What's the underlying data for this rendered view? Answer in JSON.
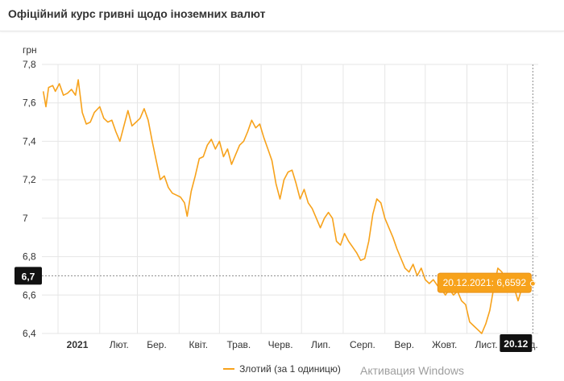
{
  "title": "Офіційний курс гривні щодо іноземних валют",
  "watermark": "Активация Windows",
  "chart_data": {
    "type": "line",
    "ylabel": "грн",
    "ylim": [
      6.4,
      7.8
    ],
    "yticks": [
      6.4,
      6.6,
      6.8,
      7,
      7.2,
      7.4,
      7.6,
      7.8
    ],
    "ytick_labels": [
      "6,4",
      "6,6",
      "6,8",
      "7",
      "7,2",
      "7,4",
      "7,6",
      "7,8"
    ],
    "xticks": [
      {
        "date": "2021-01-01",
        "label": "2021",
        "bold": true
      },
      {
        "date": "2021-02-01",
        "label": "Лют.",
        "bold": false
      },
      {
        "date": "2021-03-01",
        "label": "Бер.",
        "bold": false
      },
      {
        "date": "2021-04-01",
        "label": "Квіт.",
        "bold": false
      },
      {
        "date": "2021-05-01",
        "label": "Трав.",
        "bold": false
      },
      {
        "date": "2021-06-01",
        "label": "Черв.",
        "bold": false
      },
      {
        "date": "2021-07-01",
        "label": "Лип.",
        "bold": false
      },
      {
        "date": "2021-08-01",
        "label": "Серп.",
        "bold": false
      },
      {
        "date": "2021-09-01",
        "label": "Вер.",
        "bold": false
      },
      {
        "date": "2021-10-01",
        "label": "Жовт.",
        "bold": false
      },
      {
        "date": "2021-11-01",
        "label": "Лист.",
        "bold": false
      },
      {
        "date": "2021-12-01",
        "label": "Груд.",
        "bold": false
      }
    ],
    "xrange": [
      "2020-12-20",
      "2021-12-24"
    ],
    "grid": true,
    "legend_position": "bottom",
    "series": [
      {
        "name": "Злотий (за 1 одиницю)",
        "color": "#f7a21b",
        "points": [
          [
            "2020-12-21",
            7.66
          ],
          [
            "2020-12-23",
            7.58
          ],
          [
            "2020-12-25",
            7.68
          ],
          [
            "2020-12-28",
            7.69
          ],
          [
            "2020-12-30",
            7.66
          ],
          [
            "2021-01-02",
            7.7
          ],
          [
            "2021-01-05",
            7.64
          ],
          [
            "2021-01-08",
            7.65
          ],
          [
            "2021-01-11",
            7.67
          ],
          [
            "2021-01-14",
            7.64
          ],
          [
            "2021-01-16",
            7.72
          ],
          [
            "2021-01-19",
            7.55
          ],
          [
            "2021-01-22",
            7.49
          ],
          [
            "2021-01-25",
            7.5
          ],
          [
            "2021-01-28",
            7.55
          ],
          [
            "2021-02-01",
            7.58
          ],
          [
            "2021-02-04",
            7.52
          ],
          [
            "2021-02-07",
            7.5
          ],
          [
            "2021-02-10",
            7.51
          ],
          [
            "2021-02-13",
            7.45
          ],
          [
            "2021-02-16",
            7.4
          ],
          [
            "2021-02-19",
            7.48
          ],
          [
            "2021-02-22",
            7.56
          ],
          [
            "2021-02-25",
            7.48
          ],
          [
            "2021-02-28",
            7.5
          ],
          [
            "2021-03-03",
            7.52
          ],
          [
            "2021-03-06",
            7.57
          ],
          [
            "2021-03-09",
            7.51
          ],
          [
            "2021-03-12",
            7.4
          ],
          [
            "2021-03-15",
            7.3
          ],
          [
            "2021-03-18",
            7.2
          ],
          [
            "2021-03-21",
            7.22
          ],
          [
            "2021-03-24",
            7.16
          ],
          [
            "2021-03-27",
            7.13
          ],
          [
            "2021-03-30",
            7.12
          ],
          [
            "2021-04-02",
            7.11
          ],
          [
            "2021-04-05",
            7.08
          ],
          [
            "2021-04-07",
            7.01
          ],
          [
            "2021-04-10",
            7.14
          ],
          [
            "2021-04-13",
            7.22
          ],
          [
            "2021-04-16",
            7.31
          ],
          [
            "2021-04-19",
            7.32
          ],
          [
            "2021-04-22",
            7.38
          ],
          [
            "2021-04-25",
            7.41
          ],
          [
            "2021-04-28",
            7.36
          ],
          [
            "2021-05-01",
            7.4
          ],
          [
            "2021-05-04",
            7.32
          ],
          [
            "2021-05-07",
            7.36
          ],
          [
            "2021-05-10",
            7.28
          ],
          [
            "2021-05-13",
            7.33
          ],
          [
            "2021-05-16",
            7.38
          ],
          [
            "2021-05-19",
            7.4
          ],
          [
            "2021-05-22",
            7.45
          ],
          [
            "2021-05-25",
            7.51
          ],
          [
            "2021-05-28",
            7.47
          ],
          [
            "2021-05-31",
            7.49
          ],
          [
            "2021-06-03",
            7.42
          ],
          [
            "2021-06-06",
            7.36
          ],
          [
            "2021-06-09",
            7.3
          ],
          [
            "2021-06-12",
            7.18
          ],
          [
            "2021-06-15",
            7.1
          ],
          [
            "2021-06-18",
            7.2
          ],
          [
            "2021-06-21",
            7.24
          ],
          [
            "2021-06-24",
            7.25
          ],
          [
            "2021-06-27",
            7.18
          ],
          [
            "2021-06-30",
            7.1
          ],
          [
            "2021-07-03",
            7.15
          ],
          [
            "2021-07-06",
            7.08
          ],
          [
            "2021-07-09",
            7.05
          ],
          [
            "2021-07-12",
            7.0
          ],
          [
            "2021-07-15",
            6.95
          ],
          [
            "2021-07-18",
            7.0
          ],
          [
            "2021-07-21",
            7.03
          ],
          [
            "2021-07-24",
            7.0
          ],
          [
            "2021-07-27",
            6.88
          ],
          [
            "2021-07-30",
            6.86
          ],
          [
            "2021-08-02",
            6.92
          ],
          [
            "2021-08-05",
            6.88
          ],
          [
            "2021-08-08",
            6.85
          ],
          [
            "2021-08-11",
            6.82
          ],
          [
            "2021-08-14",
            6.78
          ],
          [
            "2021-08-17",
            6.79
          ],
          [
            "2021-08-20",
            6.88
          ],
          [
            "2021-08-23",
            7.02
          ],
          [
            "2021-08-26",
            7.1
          ],
          [
            "2021-08-29",
            7.08
          ],
          [
            "2021-09-01",
            7.0
          ],
          [
            "2021-09-04",
            6.95
          ],
          [
            "2021-09-07",
            6.9
          ],
          [
            "2021-09-10",
            6.84
          ],
          [
            "2021-09-13",
            6.79
          ],
          [
            "2021-09-16",
            6.74
          ],
          [
            "2021-09-19",
            6.72
          ],
          [
            "2021-09-22",
            6.76
          ],
          [
            "2021-09-25",
            6.7
          ],
          [
            "2021-09-28",
            6.74
          ],
          [
            "2021-10-01",
            6.68
          ],
          [
            "2021-10-04",
            6.66
          ],
          [
            "2021-10-07",
            6.68
          ],
          [
            "2021-10-10",
            6.65
          ],
          [
            "2021-10-13",
            6.63
          ],
          [
            "2021-10-16",
            6.6
          ],
          [
            "2021-10-19",
            6.63
          ],
          [
            "2021-10-22",
            6.6
          ],
          [
            "2021-10-25",
            6.62
          ],
          [
            "2021-10-28",
            6.57
          ],
          [
            "2021-10-31",
            6.55
          ],
          [
            "2021-11-03",
            6.46
          ],
          [
            "2021-11-06",
            6.44
          ],
          [
            "2021-11-09",
            6.42
          ],
          [
            "2021-11-12",
            6.4
          ],
          [
            "2021-11-15",
            6.45
          ],
          [
            "2021-11-18",
            6.52
          ],
          [
            "2021-11-21",
            6.64
          ],
          [
            "2021-11-24",
            6.74
          ],
          [
            "2021-11-27",
            6.72
          ],
          [
            "2021-11-30",
            6.67
          ],
          [
            "2021-12-03",
            6.7
          ],
          [
            "2021-12-06",
            6.64
          ],
          [
            "2021-12-09",
            6.57
          ],
          [
            "2021-12-12",
            6.64
          ],
          [
            "2021-12-15",
            6.66
          ],
          [
            "2021-12-18",
            6.64
          ],
          [
            "2021-12-20",
            6.6592
          ]
        ]
      }
    ],
    "crosshair": {
      "value": 6.7,
      "value_label": "6,7",
      "date": "2021-12-20",
      "date_label": "20.12"
    },
    "tooltip": {
      "text": "20.12.2021: 6,6592",
      "date": "2021-12-20",
      "value": 6.6592
    }
  }
}
